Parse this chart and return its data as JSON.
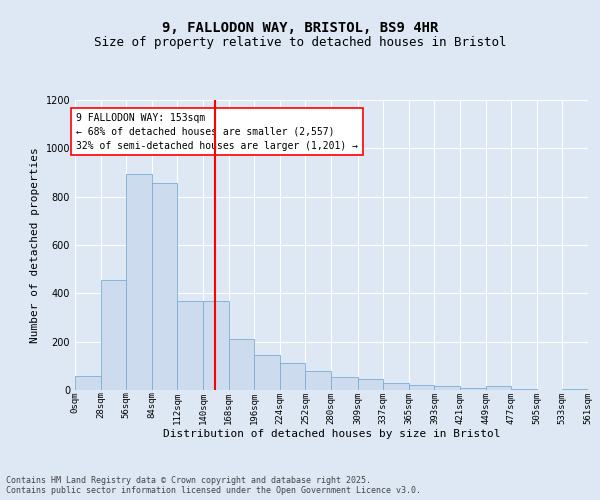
{
  "title_line1": "9, FALLODON WAY, BRISTOL, BS9 4HR",
  "title_line2": "Size of property relative to detached houses in Bristol",
  "xlabel": "Distribution of detached houses by size in Bristol",
  "ylabel": "Number of detached properties",
  "bar_color": "#ccdcee",
  "bar_edge_color": "#7aadd4",
  "vline_color": "red",
  "vline_x": 153,
  "background_color": "#dde8f4",
  "plot_bg_color": "#dde8f4",
  "bins": [
    0,
    28,
    56,
    84,
    112,
    140,
    168,
    196,
    224,
    252,
    280,
    309,
    337,
    365,
    393,
    421,
    449,
    477,
    505,
    533,
    561
  ],
  "bin_labels": [
    "0sqm",
    "28sqm",
    "56sqm",
    "84sqm",
    "112sqm",
    "140sqm",
    "168sqm",
    "196sqm",
    "224sqm",
    "252sqm",
    "280sqm",
    "309sqm",
    "337sqm",
    "365sqm",
    "393sqm",
    "421sqm",
    "449sqm",
    "477sqm",
    "505sqm",
    "533sqm",
    "561sqm"
  ],
  "values": [
    60,
    455,
    895,
    855,
    370,
    370,
    210,
    145,
    110,
    80,
    55,
    45,
    30,
    20,
    18,
    7,
    18,
    4,
    0,
    4
  ],
  "ylim": [
    0,
    1200
  ],
  "yticks": [
    0,
    200,
    400,
    600,
    800,
    1000,
    1200
  ],
  "annotation_text": "9 FALLODON WAY: 153sqm\n← 68% of detached houses are smaller (2,557)\n32% of semi-detached houses are larger (1,201) →",
  "footer_line1": "Contains HM Land Registry data © Crown copyright and database right 2025.",
  "footer_line2": "Contains public sector information licensed under the Open Government Licence v3.0.",
  "title_fontsize": 10,
  "subtitle_fontsize": 9,
  "axis_label_fontsize": 8,
  "tick_fontsize": 6.5,
  "annotation_fontsize": 7,
  "footer_fontsize": 6
}
